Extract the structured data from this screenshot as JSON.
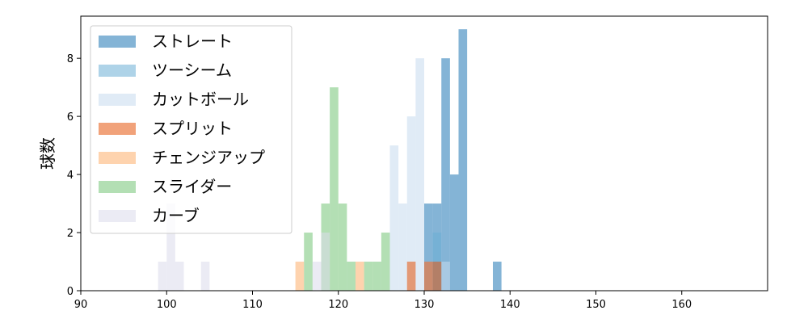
{
  "chart_data": {
    "type": "histogram",
    "title": "",
    "xlabel": "",
    "ylabel": "球数",
    "xlim": [
      90,
      170
    ],
    "ylim": [
      0,
      9.45
    ],
    "bin_width": 1,
    "x_ticks": [
      90,
      100,
      110,
      120,
      130,
      140,
      150,
      160
    ],
    "y_ticks": [
      0,
      2,
      4,
      6,
      8
    ],
    "grid": false,
    "legend_position": "top-left",
    "series": [
      {
        "name": "ストレート",
        "color": "#1f77b4",
        "bins": [
          [
            130,
            3
          ],
          [
            131,
            3
          ],
          [
            132,
            8
          ],
          [
            133,
            4
          ],
          [
            134,
            9
          ],
          [
            138,
            1
          ]
        ]
      },
      {
        "name": "ツーシーム",
        "color": "#6baed6",
        "bins": [
          [
            131,
            2
          ]
        ]
      },
      {
        "name": "カットボール",
        "color": "#c6dbef",
        "bins": [
          [
            126,
            5
          ],
          [
            127,
            3
          ],
          [
            128,
            6
          ],
          [
            129,
            8
          ],
          [
            130,
            1
          ],
          [
            132,
            1
          ]
        ]
      },
      {
        "name": "スプリット",
        "color": "#e6550d",
        "bins": [
          [
            128,
            1
          ],
          [
            130,
            1
          ],
          [
            131,
            1
          ]
        ]
      },
      {
        "name": "チェンジアップ",
        "color": "#fdae6b",
        "bins": [
          [
            115,
            1
          ],
          [
            122,
            1
          ]
        ]
      },
      {
        "name": "スライダー",
        "color": "#74c476",
        "bins": [
          [
            116,
            2
          ],
          [
            118,
            3
          ],
          [
            119,
            7
          ],
          [
            120,
            3
          ],
          [
            121,
            1
          ],
          [
            123,
            1
          ],
          [
            124,
            1
          ],
          [
            125,
            2
          ]
        ]
      },
      {
        "name": "カーブ",
        "color": "#dadaeb",
        "bins": [
          [
            99,
            1
          ],
          [
            100,
            3
          ],
          [
            101,
            1
          ],
          [
            104,
            1
          ],
          [
            117,
            1
          ],
          [
            118,
            2
          ]
        ]
      }
    ]
  }
}
